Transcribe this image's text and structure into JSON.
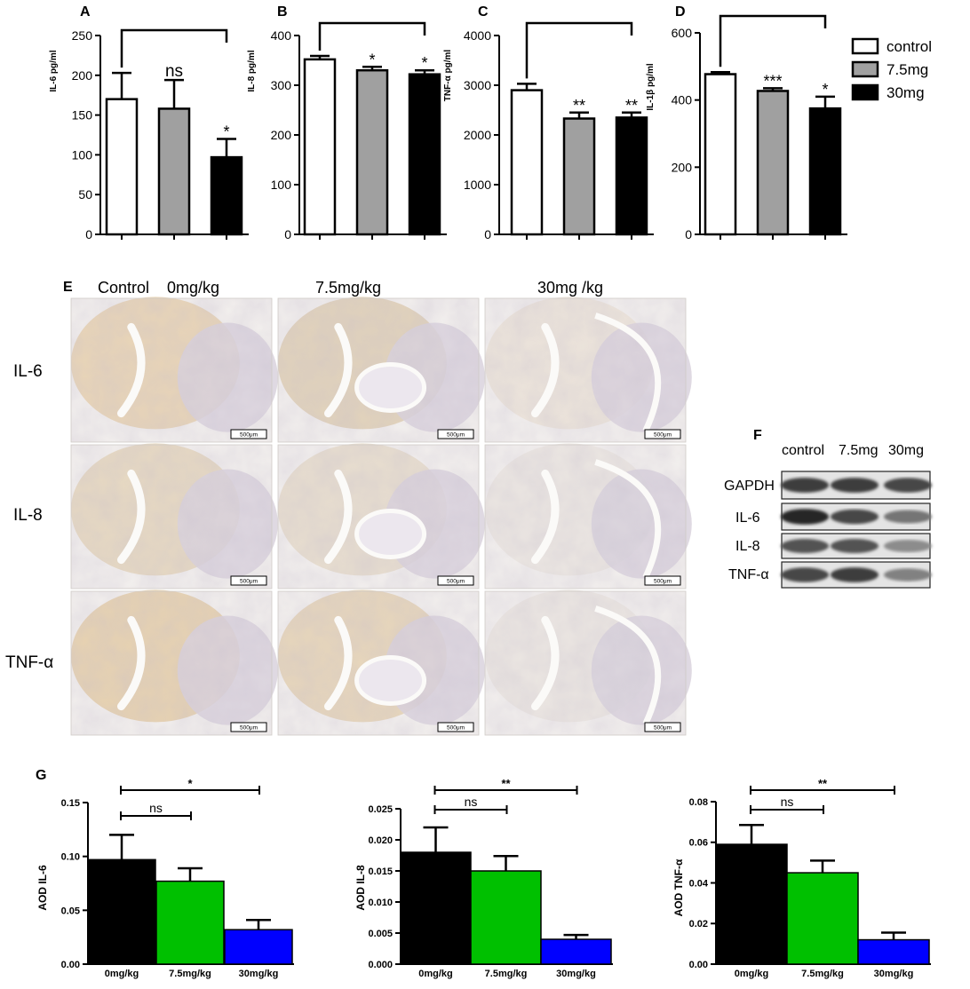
{
  "panel_letters": [
    "A",
    "B",
    "C",
    "D",
    "E",
    "F",
    "G"
  ],
  "legend": [
    {
      "label": "control",
      "color": "#ffffff"
    },
    {
      "label": "7.5mg",
      "color": "#a0a0a0"
    },
    {
      "label": "30mg",
      "color": "#000000"
    }
  ],
  "histology": {
    "columns": [
      "Control    0mg/kg",
      "7.5mg/kg",
      "30mg /kg"
    ],
    "rows": [
      "IL-6",
      "IL-8",
      "TNF-α"
    ],
    "scale_bar": "500μm"
  },
  "western": {
    "lanes": [
      "control",
      "7.5mg",
      "30mg"
    ],
    "proteins": [
      "GAPDH",
      "IL-6",
      "IL-8",
      "TNF-α"
    ],
    "band_intensity": [
      [
        0.85,
        0.85,
        0.8
      ],
      [
        0.95,
        0.8,
        0.6
      ],
      [
        0.75,
        0.75,
        0.5
      ],
      [
        0.8,
        0.85,
        0.55
      ]
    ]
  },
  "chart_data": [
    {
      "type": "bar",
      "panel": "A",
      "ylabel": "IL-6 pg/ml",
      "ylim": [
        0,
        250
      ],
      "yticks": [
        0,
        50,
        100,
        150,
        200,
        250
      ],
      "categories": [
        "control",
        "7.5mg",
        "30mg"
      ],
      "values": [
        170,
        158,
        97
      ],
      "errors": [
        33,
        36,
        23
      ],
      "colors": [
        "#ffffff",
        "#a0a0a0",
        "#000000"
      ],
      "annotations": [
        "",
        "ns",
        "*"
      ],
      "bracket": true
    },
    {
      "type": "bar",
      "panel": "B",
      "ylabel": "IL-8 pg/ml",
      "ylim": [
        0,
        400
      ],
      "yticks": [
        0,
        100,
        200,
        300,
        400
      ],
      "categories": [
        "control",
        "7.5mg",
        "30mg"
      ],
      "values": [
        352,
        330,
        322
      ],
      "errors": [
        7,
        7,
        8
      ],
      "colors": [
        "#ffffff",
        "#a0a0a0",
        "#000000"
      ],
      "annotations": [
        "",
        "*",
        "*"
      ],
      "bracket": true
    },
    {
      "type": "bar",
      "panel": "C",
      "ylabel": "TNF-α  pg/ml",
      "ylim": [
        0,
        4000
      ],
      "yticks": [
        0,
        1000,
        2000,
        3000,
        4000
      ],
      "categories": [
        "control",
        "7.5mg",
        "30mg"
      ],
      "values": [
        2900,
        2330,
        2350
      ],
      "errors": [
        130,
        120,
        100
      ],
      "colors": [
        "#ffffff",
        "#a0a0a0",
        "#000000"
      ],
      "annotations": [
        "",
        "**",
        "**"
      ],
      "bracket": true
    },
    {
      "type": "bar",
      "panel": "D",
      "ylabel": "IL-1β  pg/ml",
      "ylim": [
        0,
        600
      ],
      "yticks": [
        0,
        200,
        400,
        600
      ],
      "categories": [
        "control",
        "7.5mg",
        "30mg"
      ],
      "values": [
        477,
        427,
        375
      ],
      "errors": [
        6,
        8,
        35
      ],
      "colors": [
        "#ffffff",
        "#a0a0a0",
        "#000000"
      ],
      "annotations": [
        "",
        "***",
        "*"
      ],
      "bracket": true
    },
    {
      "type": "bar",
      "panel": "G",
      "ylabel": "AOD IL-6",
      "ylim": [
        0,
        0.15
      ],
      "yticks": [
        0,
        0.05,
        0.1,
        0.15
      ],
      "ytick_labels": [
        "0.00",
        "0.05",
        "0.10",
        "0.15"
      ],
      "categories": [
        "0mg/kg",
        "7.5mg/kg",
        "30mg/kg"
      ],
      "values": [
        0.097,
        0.077,
        0.032
      ],
      "errors": [
        0.023,
        0.012,
        0.009
      ],
      "colors": [
        "#000000",
        "#00c000",
        "#0000ff"
      ],
      "brackets": [
        {
          "label": "*"
        },
        {
          "label": "ns"
        }
      ]
    },
    {
      "type": "bar",
      "panel": "G",
      "ylabel": "AOD IL-8",
      "ylim": [
        0,
        0.025
      ],
      "yticks": [
        0,
        0.005,
        0.01,
        0.015,
        0.02,
        0.025
      ],
      "ytick_labels": [
        "0.000",
        "0.005",
        "0.010",
        "0.015",
        "0.020",
        "0.025"
      ],
      "categories": [
        "0mg/kg",
        "7.5mg/kg",
        "30mg/kg"
      ],
      "values": [
        0.018,
        0.015,
        0.004
      ],
      "errors": [
        0.004,
        0.0024,
        0.0007
      ],
      "colors": [
        "#000000",
        "#00c000",
        "#0000ff"
      ],
      "brackets": [
        {
          "label": "**"
        },
        {
          "label": "ns"
        }
      ]
    },
    {
      "type": "bar",
      "panel": "G",
      "ylabel": "AOD TNF-α",
      "ylim": [
        0,
        0.08
      ],
      "yticks": [
        0,
        0.02,
        0.04,
        0.06,
        0.08
      ],
      "ytick_labels": [
        "0.00",
        "0.02",
        "0.04",
        "0.06",
        "0.08"
      ],
      "categories": [
        "0mg/kg",
        "7.5mg/kg",
        "30mg/kg"
      ],
      "values": [
        0.059,
        0.045,
        0.012
      ],
      "errors": [
        0.0095,
        0.006,
        0.0035
      ],
      "colors": [
        "#000000",
        "#00c000",
        "#0000ff"
      ],
      "brackets": [
        {
          "label": "**"
        },
        {
          "label": "ns"
        }
      ]
    }
  ]
}
